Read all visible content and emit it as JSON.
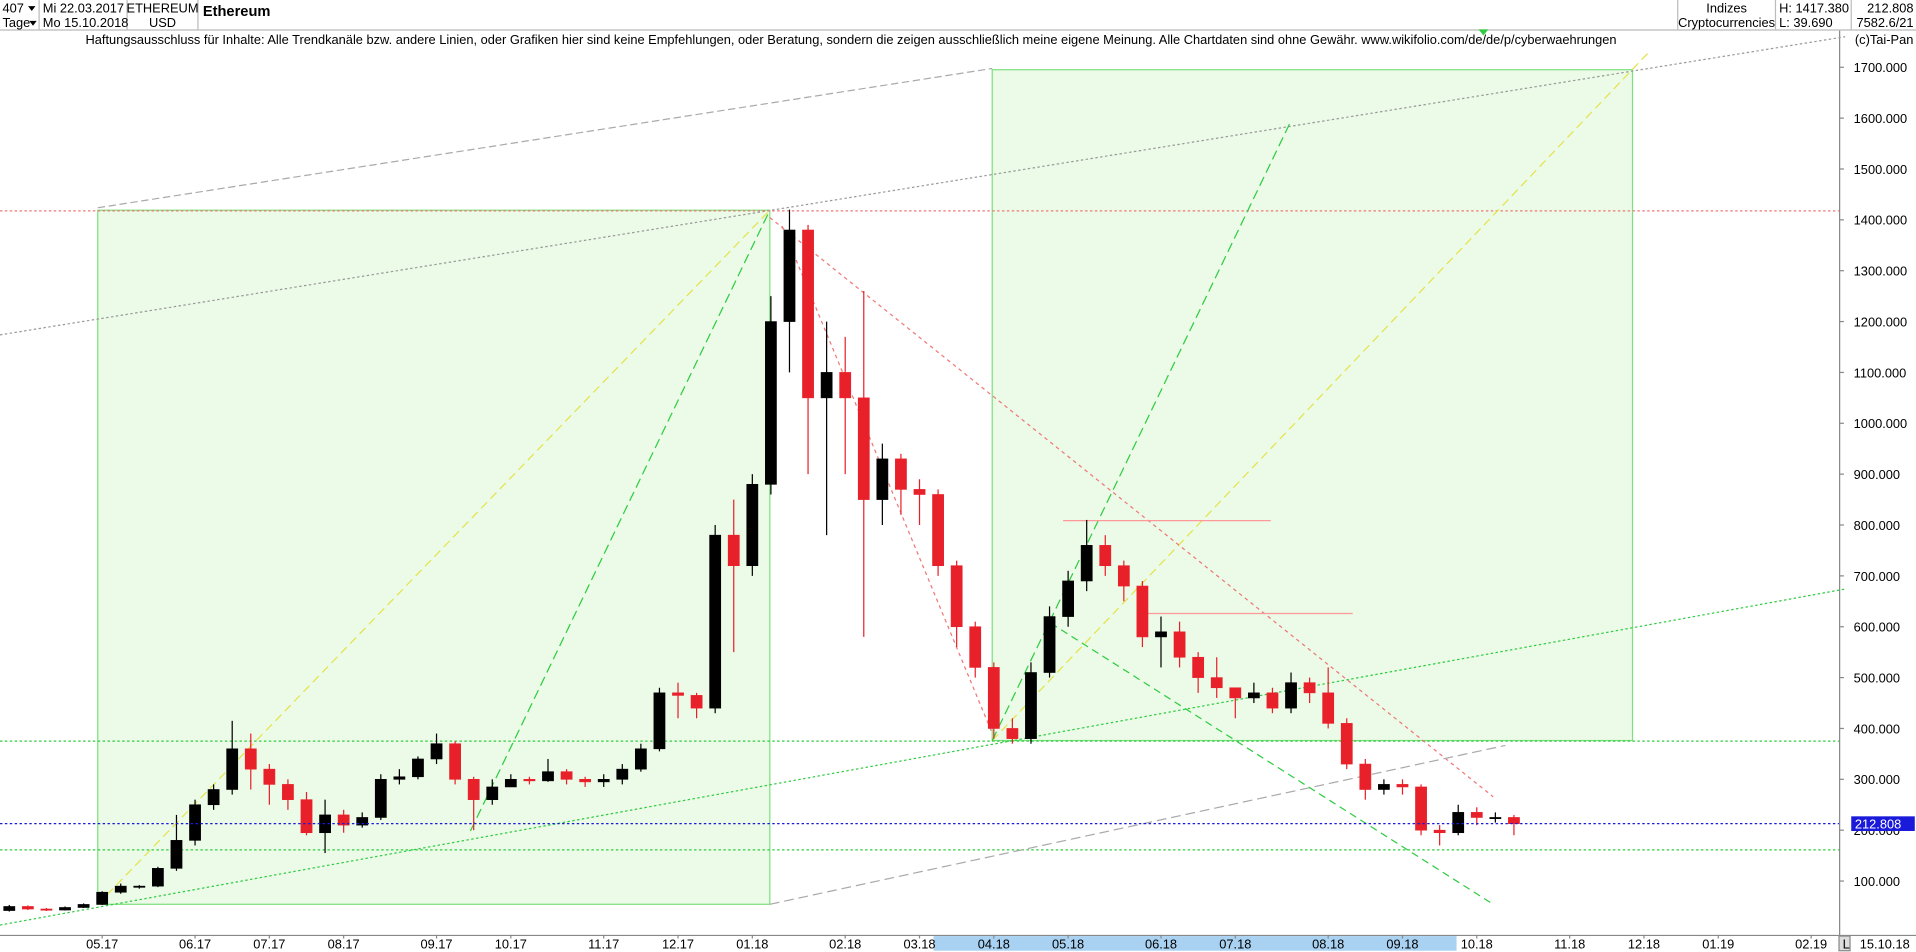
{
  "header": {
    "count": "407",
    "from": "Mi 22.03.2017",
    "period": "Tage",
    "to": "Mo 15.10.2018",
    "symbol": "ETHEREUM",
    "currency": "USD",
    "group": "Indizes",
    "subgroup": "Cryptocurrencies",
    "high": "H: 1417.380",
    "low": "L: 39.690",
    "last": "212.808",
    "index": "7582.6/21",
    "disclaimer": "Haftungsausschluss für Inhalte: Alle Trendkanäle bzw. andere Linien, oder Grafiken hier sind keine Empfehlungen, oder Beratung, sondern die zeigen ausschließlich meine eigene Meinung. Alle Chartdaten sind ohne Gewähr.  www.wikifolio.com/de/de/p/cyberwaehrungen",
    "copyright": "(c)Tai-Pan",
    "date": "15.10.18",
    "mode": "L"
  },
  "chart_data": {
    "type": "candlestick",
    "title": "Ethereum",
    "categories": [
      null,
      null,
      null,
      null,
      null,
      "05.17",
      null,
      null,
      null,
      null,
      "06.17",
      null,
      null,
      null,
      "07.17",
      null,
      null,
      null,
      "08.17",
      null,
      null,
      null,
      null,
      "09.17",
      null,
      null,
      null,
      "10.17",
      null,
      null,
      null,
      null,
      "11.17",
      null,
      null,
      null,
      "12.17",
      null,
      null,
      null,
      "01.18",
      null,
      null,
      null,
      null,
      "02.18",
      null,
      null,
      null,
      "03.18",
      null,
      null,
      null,
      "04.18",
      null,
      null,
      null,
      "05.18",
      null,
      null,
      null,
      null,
      "06.18",
      null,
      null,
      null,
      "07.18",
      null,
      null,
      null,
      null,
      "08.18",
      null,
      null,
      null,
      "09.18",
      null,
      null,
      null,
      "10.18",
      null,
      null,
      null,
      null,
      "11.18",
      null,
      null,
      null,
      "12.18",
      null,
      null,
      null,
      "01.19",
      null,
      null,
      null,
      null,
      "02.19",
      null
    ],
    "open": [
      42,
      50,
      45,
      43,
      48,
      54,
      78,
      90,
      90,
      125,
      180,
      250,
      280,
      360,
      320,
      290,
      260,
      195,
      230,
      210,
      225,
      300,
      305,
      340,
      370,
      300,
      260,
      285,
      300,
      297,
      315,
      300,
      295,
      300,
      320,
      360,
      470,
      465,
      440,
      780,
      720,
      880,
      1200,
      1380,
      1050,
      1100,
      1050,
      850,
      930,
      870,
      860,
      720,
      600,
      520,
      400,
      380,
      510,
      620,
      690,
      760,
      720,
      680,
      580,
      590,
      540,
      500,
      480,
      460,
      470,
      440,
      490,
      470,
      410,
      330,
      280,
      290,
      285,
      200,
      195,
      235,
      225,
      225,
      null,
      null,
      null,
      null,
      null,
      null,
      null,
      null,
      null,
      null,
      null,
      null,
      null,
      null,
      null,
      null,
      null
    ],
    "high": [
      53,
      52,
      47,
      50,
      56,
      80,
      95,
      92,
      128,
      230,
      260,
      290,
      415,
      390,
      330,
      300,
      275,
      260,
      240,
      235,
      310,
      320,
      345,
      390,
      375,
      305,
      300,
      310,
      305,
      340,
      320,
      305,
      310,
      330,
      370,
      480,
      490,
      470,
      800,
      850,
      900,
      1250,
      1420,
      1390,
      1200,
      1170,
      1260,
      960,
      940,
      890,
      870,
      730,
      610,
      530,
      420,
      530,
      640,
      710,
      810,
      780,
      730,
      690,
      620,
      610,
      550,
      540,
      480,
      490,
      480,
      510,
      500,
      520,
      420,
      340,
      300,
      300,
      290,
      210,
      250,
      245,
      235,
      230,
      null,
      null,
      null,
      null,
      null,
      null,
      null,
      null,
      null,
      null,
      null,
      null,
      null,
      null,
      null,
      null,
      null
    ],
    "low": [
      40,
      43,
      41,
      42,
      47,
      53,
      75,
      85,
      88,
      120,
      170,
      240,
      270,
      280,
      250,
      240,
      190,
      155,
      195,
      205,
      220,
      290,
      300,
      330,
      290,
      200,
      250,
      285,
      290,
      295,
      290,
      285,
      285,
      290,
      315,
      355,
      420,
      420,
      430,
      550,
      700,
      860,
      1100,
      900,
      780,
      900,
      580,
      800,
      820,
      800,
      700,
      560,
      500,
      380,
      370,
      370,
      500,
      600,
      670,
      700,
      650,
      560,
      520,
      520,
      470,
      460,
      420,
      450,
      430,
      430,
      450,
      400,
      320,
      260,
      270,
      270,
      190,
      170,
      190,
      210,
      215,
      190,
      null,
      null,
      null,
      null,
      null,
      null,
      null,
      null,
      null,
      null,
      null,
      null,
      null,
      null,
      null,
      null,
      null
    ],
    "close": [
      50,
      45,
      43,
      48,
      54,
      78,
      90,
      90,
      125,
      180,
      250,
      280,
      360,
      320,
      290,
      260,
      195,
      230,
      210,
      225,
      300,
      305,
      340,
      370,
      300,
      260,
      285,
      300,
      297,
      315,
      300,
      295,
      300,
      320,
      360,
      470,
      465,
      440,
      780,
      720,
      880,
      1200,
      1380,
      1050,
      1100,
      1050,
      850,
      930,
      870,
      860,
      720,
      600,
      520,
      400,
      380,
      510,
      620,
      690,
      760,
      720,
      680,
      580,
      590,
      540,
      500,
      480,
      460,
      470,
      440,
      490,
      470,
      410,
      330,
      280,
      290,
      285,
      200,
      195,
      235,
      225,
      225,
      212.808,
      null,
      null,
      null,
      null,
      null,
      null,
      null,
      null,
      null,
      null,
      null,
      null,
      null,
      null,
      null,
      null,
      null
    ],
    "up_color": "#000000",
    "down_color": "#e8202a",
    "ylim": [
      0,
      1780
    ],
    "yticks": [
      {
        "value": 100,
        "label": "100.000"
      },
      {
        "value": 200,
        "label": "200.000"
      },
      {
        "value": 300,
        "label": "300.000"
      },
      {
        "value": 400,
        "label": "400.000"
      },
      {
        "value": 500,
        "label": "500.000"
      },
      {
        "value": 600,
        "label": "600.000"
      },
      {
        "value": 700,
        "label": "700.000"
      },
      {
        "value": 800,
        "label": "800.000"
      },
      {
        "value": 900,
        "label": "900.000"
      },
      {
        "value": 1000,
        "label": "1000.000"
      },
      {
        "value": 1100,
        "label": "1100.000"
      },
      {
        "value": 1200,
        "label": "1200.000"
      },
      {
        "value": 1300,
        "label": "1300.000"
      },
      {
        "value": 1400,
        "label": "1400.000"
      },
      {
        "value": 1500,
        "label": "1500.000"
      },
      {
        "value": 1600,
        "label": "1600.000"
      },
      {
        "value": 1700,
        "label": "1700.000"
      }
    ],
    "last_price": 212.808,
    "last_price_color": "#1a1adb"
  }
}
